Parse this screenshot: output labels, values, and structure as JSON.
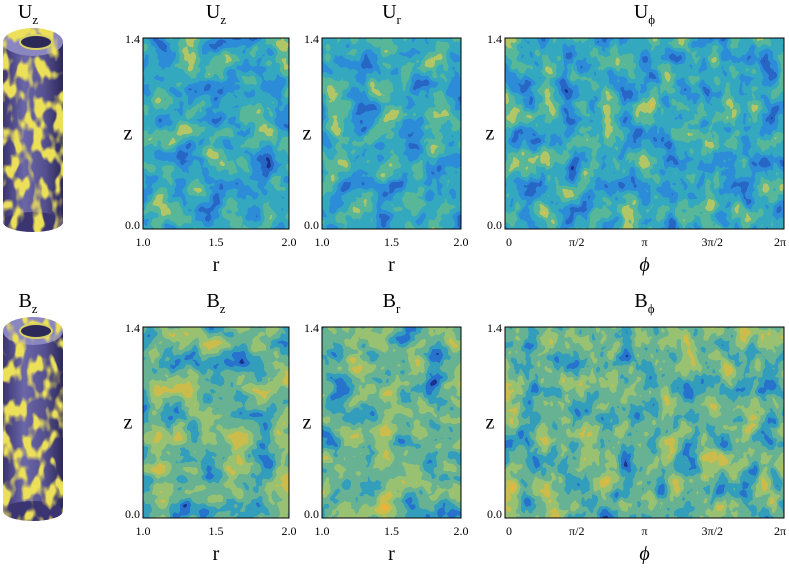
{
  "rows": [
    {
      "cylinder_label": {
        "main": "U",
        "sub": "z"
      },
      "panels": [
        {
          "title": {
            "main": "U",
            "sub": "z"
          },
          "y_label": "z",
          "y_ticks": [
            "0.0",
            "1.4"
          ],
          "x_label": "r",
          "x_ticks": [
            "1.0",
            "1.5",
            "2.0"
          ]
        },
        {
          "title": {
            "main": "U",
            "sub": "r"
          },
          "y_label": "z",
          "y_ticks": [
            "0.0",
            "1.4"
          ],
          "x_label": "r",
          "x_ticks": [
            "1.0",
            "1.5",
            "2.0"
          ]
        },
        {
          "title": {
            "main": "U",
            "sub": "ϕ"
          },
          "y_label": "z",
          "y_ticks": [
            "0.0",
            "1.4"
          ],
          "x_label": "ϕ",
          "x_ticks": [
            "0",
            "π/2",
            "π",
            "3π/2",
            "2π"
          ]
        }
      ]
    },
    {
      "cylinder_label": {
        "main": "B",
        "sub": "z"
      },
      "panels": [
        {
          "title": {
            "main": "B",
            "sub": "z"
          },
          "y_label": "z",
          "y_ticks": [
            "0.0",
            "1.4"
          ],
          "x_label": "r",
          "x_ticks": [
            "1.0",
            "1.5",
            "2.0"
          ]
        },
        {
          "title": {
            "main": "B",
            "sub": "r"
          },
          "y_label": "z",
          "y_ticks": [
            "0.0",
            "1.4"
          ],
          "x_label": "r",
          "x_ticks": [
            "1.0",
            "1.5",
            "2.0"
          ]
        },
        {
          "title": {
            "main": "B",
            "sub": "ϕ"
          },
          "y_label": "z",
          "y_ticks": [
            "0.0",
            "1.4"
          ],
          "x_label": "ϕ",
          "x_ticks": [
            "0",
            "π/2",
            "π",
            "3π/2",
            "2π"
          ]
        }
      ]
    }
  ]
}
